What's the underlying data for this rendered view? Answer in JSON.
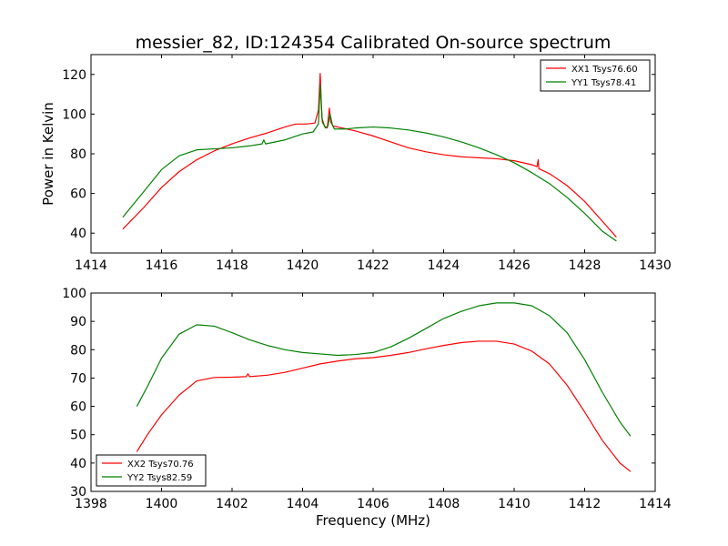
{
  "figure": {
    "title": "messier_82, ID:124354 Calibrated On-source spectrum",
    "xlabel": "Frequency (MHz)"
  },
  "chart_data": [
    {
      "type": "line",
      "title": "messier_82, ID:124354 Calibrated On-source spectrum",
      "xlabel": "",
      "ylabel": "Power in Kelvin",
      "xlim": [
        1414,
        1430
      ],
      "ylim": [
        30,
        130
      ],
      "xticks": [
        1414,
        1416,
        1418,
        1420,
        1422,
        1424,
        1426,
        1428,
        1430
      ],
      "yticks": [
        40,
        60,
        80,
        100,
        120
      ],
      "grid": false,
      "legend": "top-right",
      "series": [
        {
          "name": "XX1 Tsys76.60",
          "color": "#ff0000",
          "x": [
            1414.9,
            1415.5,
            1416,
            1416.5,
            1417,
            1417.5,
            1418,
            1418.5,
            1419,
            1419.5,
            1419.8,
            1420.1,
            1420.35,
            1420.45,
            1420.5,
            1420.55,
            1420.62,
            1420.7,
            1420.76,
            1420.8,
            1420.86,
            1421,
            1421.5,
            1422,
            1422.5,
            1423,
            1423.5,
            1424,
            1424.5,
            1425,
            1425.5,
            1426,
            1426.5,
            1426.65,
            1426.68,
            1426.7,
            1427,
            1427.5,
            1428,
            1428.5,
            1428.9
          ],
          "y": [
            42,
            53,
            63,
            71,
            77,
            81.5,
            85,
            88,
            90.5,
            93.5,
            95,
            95,
            95.5,
            102,
            120.5,
            98,
            94,
            93,
            103,
            96,
            94,
            93.5,
            91.5,
            89,
            86,
            83,
            81,
            79.5,
            78.5,
            78,
            77.5,
            76.5,
            74.5,
            73.5,
            77,
            72.5,
            70,
            64,
            56,
            46,
            38
          ]
        },
        {
          "name": "YY1 Tsys78.41",
          "color": "#008000",
          "x": [
            1414.9,
            1415.5,
            1416,
            1416.5,
            1417,
            1417.5,
            1418,
            1418.5,
            1418.85,
            1418.9,
            1418.95,
            1419.5,
            1420,
            1420.3,
            1420.45,
            1420.5,
            1420.56,
            1420.65,
            1420.72,
            1420.78,
            1420.84,
            1420.9,
            1421.2,
            1421.5,
            1422,
            1422.5,
            1423,
            1423.5,
            1424,
            1424.5,
            1425,
            1425.5,
            1426,
            1426.5,
            1427,
            1427.5,
            1428,
            1428.5,
            1428.9
          ],
          "y": [
            48,
            61,
            72,
            79,
            82,
            82.5,
            83,
            84,
            85,
            87,
            85,
            87,
            90,
            91,
            95,
            115,
            96,
            93,
            94,
            100,
            95,
            92.5,
            92.5,
            93,
            93.5,
            93,
            92,
            90.5,
            88.5,
            86,
            83,
            79.5,
            75.5,
            70.5,
            65,
            58,
            50,
            41,
            36
          ]
        }
      ]
    },
    {
      "type": "line",
      "title": "",
      "xlabel": "Frequency (MHz)",
      "ylabel": "",
      "xlim": [
        1398,
        1414
      ],
      "ylim": [
        30,
        100
      ],
      "xticks": [
        1398,
        1400,
        1402,
        1404,
        1406,
        1408,
        1410,
        1412,
        1414
      ],
      "yticks": [
        30,
        40,
        50,
        60,
        70,
        80,
        90,
        100
      ],
      "grid": false,
      "legend": "bottom-left",
      "series": [
        {
          "name": "XX2 Tsys70.76",
          "color": "#ff0000",
          "x": [
            1399.3,
            1399.6,
            1400,
            1400.5,
            1401,
            1401.5,
            1402,
            1402.4,
            1402.45,
            1402.5,
            1403,
            1403.5,
            1404,
            1404.5,
            1405,
            1405.5,
            1406,
            1406.5,
            1407,
            1407.5,
            1408,
            1408.5,
            1409,
            1409.5,
            1410,
            1410.5,
            1411,
            1411.5,
            1412,
            1412.5,
            1413,
            1413.3
          ],
          "y": [
            44,
            50,
            57,
            64,
            69,
            70.2,
            70.3,
            70.5,
            71.5,
            70.5,
            71,
            72,
            73.5,
            75,
            76,
            76.8,
            77.2,
            78,
            79,
            80.3,
            81.5,
            82.5,
            83,
            83,
            82,
            79.5,
            75,
            67.5,
            58,
            48,
            40,
            37
          ]
        },
        {
          "name": "YY2 Tsys82.59",
          "color": "#008000",
          "x": [
            1399.3,
            1399.6,
            1400,
            1400.5,
            1401,
            1401.5,
            1402,
            1402.5,
            1403,
            1403.5,
            1404,
            1404.5,
            1405,
            1405.5,
            1406,
            1406.5,
            1407,
            1407.5,
            1408,
            1408.5,
            1409,
            1409.5,
            1410,
            1410.5,
            1411,
            1411.5,
            1412,
            1412.5,
            1413,
            1413.3
          ],
          "y": [
            60,
            67,
            77,
            85.5,
            88.8,
            88.3,
            86,
            83.5,
            81.5,
            80,
            79,
            78.5,
            78,
            78.3,
            79,
            81,
            84,
            87.5,
            91,
            93.5,
            95.5,
            96.5,
            96.5,
            95.5,
            92,
            86,
            76.5,
            65,
            54.5,
            49.5
          ]
        }
      ]
    }
  ]
}
